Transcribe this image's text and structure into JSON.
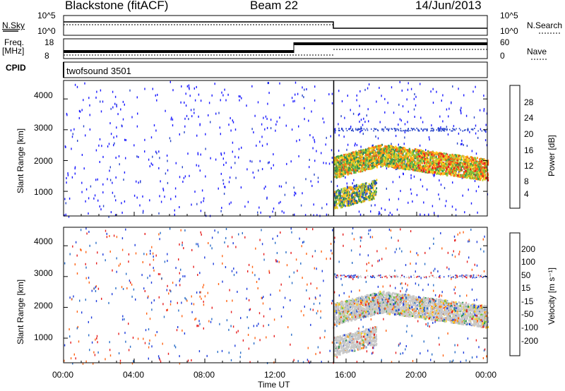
{
  "header": {
    "station": "Blackstone (fitACF)",
    "beam": "Beam 22",
    "date": "14/Jun/2013"
  },
  "nsky_panel": {
    "left_label": "N.Sky",
    "left_ticks": [
      "10^5",
      "10^0"
    ],
    "right_ticks": [
      "10^5",
      "10^0"
    ],
    "right_label": "N.Search"
  },
  "freq_panel": {
    "left_label_line1": "Freq.",
    "left_label_line2": "[MHz]",
    "left_ticks": [
      "18",
      "8"
    ],
    "right_ticks": [
      "60",
      "0"
    ],
    "right_label": "Nave"
  },
  "cpid_panel": {
    "label": "CPID",
    "value": "twofsound 3501"
  },
  "chart_data": [
    {
      "type": "heatmap",
      "name": "power",
      "ylabel": "Slant Range [km]",
      "yticks": [
        "4000",
        "3000",
        "2000",
        "1000"
      ],
      "ylim": [
        200,
        4600
      ],
      "xlim_hours": [
        0,
        24
      ],
      "colorbar": {
        "label": "Power [dB]",
        "ticks": [
          "28",
          "24",
          "20",
          "16",
          "12",
          "8",
          "4"
        ],
        "colors": [
          "#1a1aff",
          "#2846c8",
          "#2e7d5c",
          "#3fa04a",
          "#7dc23a",
          "#c8d23a",
          "#ffd21e",
          "#ffa014",
          "#ff6414",
          "#e61e1e"
        ]
      }
    },
    {
      "type": "heatmap",
      "name": "velocity",
      "ylabel": "Slant Range [km]",
      "yticks": [
        "4000",
        "3000",
        "2000",
        "1000"
      ],
      "ylim": [
        200,
        4600
      ],
      "xlim_hours": [
        0,
        24
      ],
      "colorbar": {
        "label": "Velocity [m s⁻¹]",
        "ticks": [
          "200",
          "100",
          "50",
          "15",
          "-15",
          "-50",
          "-100",
          "-200"
        ],
        "colors": [
          "#1e3cdc",
          "#2a6ec8",
          "#2e9650",
          "#78c83c",
          "#c8c8c8",
          "#c8c8c8",
          "#ffd21e",
          "#ffa014",
          "#ff6414",
          "#e61e1e"
        ]
      }
    }
  ],
  "time_axis": {
    "ticks": [
      "00:00",
      "04:00",
      "08:00",
      "12:00",
      "16:00",
      "20:00",
      "00:00"
    ],
    "label": "Time UT"
  }
}
